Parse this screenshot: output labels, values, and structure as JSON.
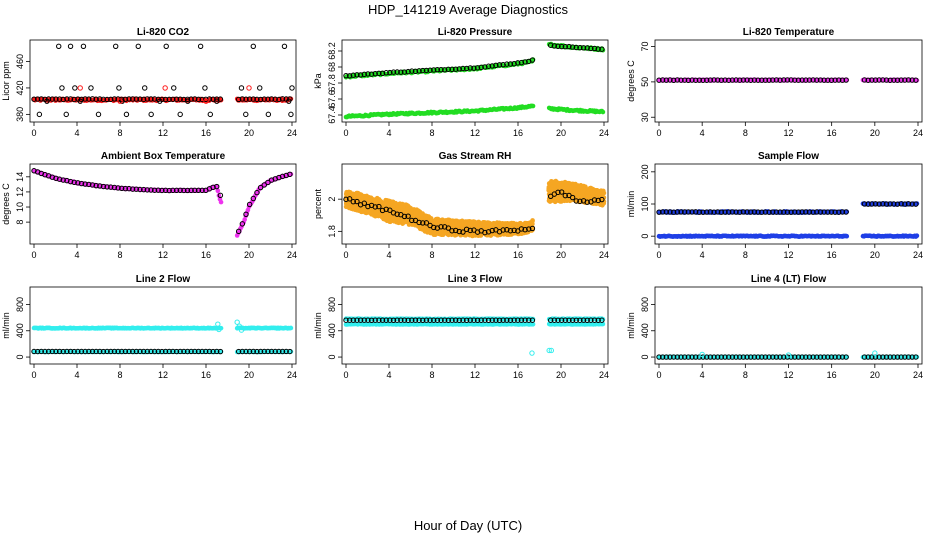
{
  "figure": {
    "title": "HDP_141219  Average Diagnostics",
    "xlabel": "Hour of Day (UTC)"
  },
  "colors": {
    "red": "#ff1a1a",
    "black": "#000000",
    "green": "#22dd22",
    "magenta": "#ee33ee",
    "orange": "#f5a623",
    "blue": "#1f3fe6",
    "cyan": "#33eeee"
  },
  "chart_data": [
    {
      "type": "scatter",
      "title": "Li-820 CO2",
      "ylabel": "Licor ppm",
      "xlim": [
        0,
        24
      ],
      "ylim": [
        373,
        488
      ],
      "xticks": [
        0,
        4,
        8,
        12,
        16,
        20,
        24
      ],
      "yticks": [
        380,
        420,
        460
      ],
      "gaps": [
        [
          17.4,
          18.8
        ]
      ],
      "series": [
        {
          "name": "red",
          "color": "red",
          "kind": "flat",
          "y": 402,
          "jitter": 1.5
        },
        {
          "name": "black-mean",
          "color": "black",
          "kind": "flat",
          "y": 403,
          "jitter": 0.5,
          "hollow": true
        },
        {
          "name": "black-upper",
          "color": "black",
          "kind": "scatter",
          "hollow": true,
          "points": [
            [
              0.5,
              380
            ],
            [
              1.2,
              400
            ],
            [
              2.3,
              483
            ],
            [
              2.6,
              420
            ],
            [
              3.0,
              380
            ],
            [
              3.4,
              483
            ],
            [
              3.8,
              420
            ],
            [
              4.3,
              400
            ],
            [
              4.6,
              483
            ],
            [
              5.3,
              420
            ],
            [
              6.0,
              380
            ],
            [
              7.6,
              483
            ],
            [
              7.9,
              420
            ],
            [
              8.2,
              400
            ],
            [
              8.6,
              380
            ],
            [
              9.7,
              483
            ],
            [
              10.3,
              420
            ],
            [
              10.9,
              380
            ],
            [
              11.7,
              400
            ],
            [
              12.3,
              483
            ],
            [
              13.0,
              420
            ],
            [
              13.6,
              380
            ],
            [
              14.3,
              400
            ],
            [
              15.5,
              483
            ],
            [
              15.9,
              420
            ],
            [
              16.4,
              380
            ],
            [
              17.0,
              400
            ],
            [
              19.3,
              420
            ],
            [
              19.7,
              380
            ],
            [
              20.4,
              483
            ],
            [
              21.0,
              420
            ],
            [
              21.8,
              380
            ],
            [
              23.3,
              483
            ],
            [
              23.9,
              380
            ],
            [
              24.0,
              420
            ],
            [
              23.7,
              400
            ]
          ]
        },
        {
          "name": "red-outliers",
          "color": "red",
          "kind": "scatter",
          "hollow": true,
          "points": [
            [
              4.3,
              420
            ],
            [
              12.2,
              420
            ],
            [
              20.0,
              420
            ],
            [
              8.0,
              400
            ],
            [
              16.0,
              400
            ]
          ]
        }
      ]
    },
    {
      "type": "scatter",
      "title": "Li-820 Pressure",
      "ylabel": "kPa",
      "xlim": [
        0,
        24
      ],
      "ylim": [
        67.35,
        68.3
      ],
      "xticks": [
        0,
        4,
        8,
        12,
        16,
        20,
        24
      ],
      "yticks": [
        67.4,
        67.6,
        67.8,
        68.0,
        68.2
      ],
      "gaps": [
        [
          17.4,
          18.8
        ]
      ],
      "series": [
        {
          "name": "green-lower",
          "color": "green",
          "kind": "line",
          "points": [
            [
              0,
              67.38
            ],
            [
              4,
              67.41
            ],
            [
              8,
              67.43
            ],
            [
              12,
              67.45
            ],
            [
              16,
              67.49
            ],
            [
              17.3,
              67.51
            ],
            [
              18.9,
              67.48
            ],
            [
              21,
              67.46
            ],
            [
              24,
              67.44
            ]
          ],
          "jitter": 0.01
        },
        {
          "name": "green-upper",
          "color": "green",
          "kind": "line",
          "points": [
            [
              0,
              67.88
            ],
            [
              4,
              67.92
            ],
            [
              8,
              67.95
            ],
            [
              12,
              67.98
            ],
            [
              16,
              68.04
            ],
            [
              17.3,
              68.07
            ],
            [
              18.9,
              68.28
            ],
            [
              21,
              68.25
            ],
            [
              24,
              68.22
            ]
          ],
          "jitter": 0.012
        },
        {
          "name": "black-upper",
          "color": "black",
          "kind": "line",
          "hollow": true,
          "points": [
            [
              0,
              67.89
            ],
            [
              4,
              67.93
            ],
            [
              8,
              67.96
            ],
            [
              12,
              67.99
            ],
            [
              16,
              68.05
            ],
            [
              17.3,
              68.08
            ],
            [
              18.9,
              68.27
            ],
            [
              21,
              68.25
            ],
            [
              24,
              68.22
            ]
          ],
          "jitter": 0.004
        }
      ]
    },
    {
      "type": "scatter",
      "title": "Li-820 Temperature",
      "ylabel": "degrees C",
      "xlim": [
        0,
        24
      ],
      "ylim": [
        29,
        72
      ],
      "xticks": [
        0,
        4,
        8,
        12,
        16,
        20,
        24
      ],
      "yticks": [
        30,
        50,
        70
      ],
      "gaps": [
        [
          17.4,
          18.8
        ]
      ],
      "series": [
        {
          "name": "magenta",
          "color": "magenta",
          "kind": "flat",
          "y": 51,
          "jitter": 0.2
        },
        {
          "name": "black",
          "color": "black",
          "kind": "flat",
          "y": 51,
          "jitter": 0.1,
          "hollow": true
        }
      ]
    },
    {
      "type": "scatter",
      "title": "Ambient Box Temperature",
      "ylabel": "degrees C",
      "xlim": [
        0,
        24
      ],
      "ylim": [
        5.5,
        15.3
      ],
      "xticks": [
        0,
        4,
        8,
        12,
        16,
        20,
        24
      ],
      "yticks": [
        8,
        10,
        12,
        14
      ],
      "gaps": [
        [
          17.4,
          18.8
        ]
      ],
      "series": [
        {
          "name": "magenta",
          "color": "magenta",
          "kind": "line",
          "points": [
            [
              0,
              14.8
            ],
            [
              2,
              13.8
            ],
            [
              4,
              13.2
            ],
            [
              6,
              12.8
            ],
            [
              8,
              12.5
            ],
            [
              10,
              12.3
            ],
            [
              12,
              12.2
            ],
            [
              14,
              12.2
            ],
            [
              16,
              12.2
            ],
            [
              16.5,
              12.6
            ],
            [
              17.0,
              12.7
            ],
            [
              17.3,
              11.0
            ],
            [
              18.9,
              6.2
            ],
            [
              19.5,
              8.0
            ],
            [
              20,
              10.0
            ],
            [
              21,
              12.5
            ],
            [
              22,
              13.5
            ],
            [
              23,
              14.0
            ],
            [
              24,
              14.4
            ]
          ],
          "jitter": 0.05
        },
        {
          "name": "black",
          "color": "black",
          "kind": "line",
          "hollow": true,
          "points": [
            [
              0,
              14.8
            ],
            [
              2,
              13.8
            ],
            [
              4,
              13.2
            ],
            [
              6,
              12.8
            ],
            [
              8,
              12.5
            ],
            [
              10,
              12.3
            ],
            [
              12,
              12.2
            ],
            [
              14,
              12.2
            ],
            [
              16,
              12.2
            ],
            [
              16.6,
              12.6
            ],
            [
              17.0,
              12.7
            ],
            [
              18.9,
              6.4
            ],
            [
              19.5,
              8.1
            ],
            [
              20,
              10.2
            ],
            [
              21,
              12.5
            ],
            [
              22,
              13.5
            ],
            [
              23,
              14.0
            ],
            [
              24,
              14.4
            ]
          ],
          "jitter": 0.02
        }
      ]
    },
    {
      "type": "scatter",
      "title": "Gas Stream RH",
      "ylabel": "percent",
      "xlim": [
        0,
        24
      ],
      "ylim": [
        1.74,
        2.2
      ],
      "xticks": [
        0,
        4,
        8,
        12,
        16,
        20,
        24
      ],
      "yticks": [
        1.8,
        2.0
      ],
      "gaps": [
        [
          17.4,
          18.8
        ]
      ],
      "series": [
        {
          "name": "orange-band",
          "color": "orange",
          "kind": "band",
          "density": 7,
          "lower": [
            [
              0,
              1.95
            ],
            [
              2,
              1.91
            ],
            [
              4,
              1.86
            ],
            [
              6,
              1.84
            ],
            [
              8,
              1.78
            ],
            [
              12,
              1.77
            ],
            [
              16,
              1.78
            ],
            [
              17.3,
              1.8
            ],
            [
              18.9,
              1.98
            ],
            [
              21,
              1.99
            ],
            [
              24,
              1.96
            ]
          ],
          "upper": [
            [
              0,
              2.06
            ],
            [
              2,
              2.02
            ],
            [
              4,
              1.99
            ],
            [
              6,
              1.96
            ],
            [
              8,
              1.88
            ],
            [
              12,
              1.86
            ],
            [
              16,
              1.85
            ],
            [
              17.3,
              1.86
            ],
            [
              18.9,
              2.12
            ],
            [
              21,
              2.1
            ],
            [
              24,
              2.05
            ]
          ]
        },
        {
          "name": "black",
          "color": "black",
          "kind": "line",
          "hollow": true,
          "points": [
            [
              0,
              2.0
            ],
            [
              2,
              1.96
            ],
            [
              4,
              1.93
            ],
            [
              6,
              1.88
            ],
            [
              8,
              1.83
            ],
            [
              10,
              1.81
            ],
            [
              12,
              1.8
            ],
            [
              14,
              1.8
            ],
            [
              16,
              1.81
            ],
            [
              17.3,
              1.82
            ],
            [
              19,
              2.02
            ],
            [
              20,
              2.04
            ],
            [
              22,
              1.98
            ],
            [
              24,
              2.0
            ]
          ],
          "jitter": 0.01
        }
      ]
    },
    {
      "type": "scatter",
      "title": "Sample Flow",
      "ylabel": "ml/min",
      "xlim": [
        0,
        24
      ],
      "ylim": [
        -15,
        215
      ],
      "xticks": [
        0,
        4,
        8,
        12,
        16,
        20,
        24
      ],
      "yticks": [
        0,
        100,
        200
      ],
      "gaps": [
        [
          17.4,
          18.8
        ]
      ],
      "series": [
        {
          "name": "blue-high",
          "color": "blue",
          "kind": "flat",
          "y": 75,
          "jitter": 2,
          "post_gap_y": 100
        },
        {
          "name": "blue-low",
          "color": "blue",
          "kind": "flat",
          "y": 0,
          "jitter": 1.5
        },
        {
          "name": "black",
          "color": "black",
          "kind": "flat",
          "y": 75,
          "jitter": 0.5,
          "hollow": true,
          "post_gap_y": 100
        }
      ]
    },
    {
      "type": "scatter",
      "title": "Line 2 Flow",
      "ylabel": "ml/min",
      "xlim": [
        0,
        24
      ],
      "ylim": [
        -60,
        1020
      ],
      "xticks": [
        0,
        4,
        8,
        12,
        16,
        20,
        24
      ],
      "yticks": [
        0,
        400,
        800
      ],
      "gaps": [
        [
          17.4,
          18.8
        ]
      ],
      "series": [
        {
          "name": "cyan-high",
          "color": "cyan",
          "kind": "flat",
          "y": 440,
          "jitter": 5
        },
        {
          "name": "cyan-low",
          "color": "cyan",
          "kind": "flat",
          "y": 80,
          "jitter": 3
        },
        {
          "name": "black",
          "color": "black",
          "kind": "flat",
          "y": 85,
          "jitter": 1,
          "hollow": true
        },
        {
          "name": "cyan-outliers",
          "color": "cyan",
          "kind": "scatter",
          "hollow": true,
          "points": [
            [
              17.1,
              500
            ],
            [
              17.2,
              420
            ],
            [
              18.9,
              530
            ],
            [
              19.1,
              470
            ],
            [
              19.3,
              410
            ]
          ]
        }
      ]
    },
    {
      "type": "scatter",
      "title": "Line 3 Flow",
      "ylabel": "ml/min",
      "xlim": [
        0,
        24
      ],
      "ylim": [
        -60,
        1020
      ],
      "xticks": [
        0,
        4,
        8,
        12,
        16,
        20,
        24
      ],
      "yticks": [
        0,
        400,
        800
      ],
      "gaps": [
        [
          17.4,
          18.8
        ]
      ],
      "series": [
        {
          "name": "cyan-high",
          "color": "cyan",
          "kind": "flat",
          "y": 580,
          "jitter": 5
        },
        {
          "name": "cyan-low",
          "color": "cyan",
          "kind": "flat",
          "y": 500,
          "jitter": 5
        },
        {
          "name": "black",
          "color": "black",
          "kind": "flat",
          "y": 560,
          "jitter": 1,
          "hollow": true
        },
        {
          "name": "cyan-outliers",
          "color": "cyan",
          "kind": "scatter",
          "hollow": true,
          "points": [
            [
              17.3,
              60
            ],
            [
              18.9,
              100
            ],
            [
              19.1,
              100
            ]
          ]
        }
      ]
    },
    {
      "type": "scatter",
      "title": "Line 4 (LT) Flow",
      "ylabel": "ml/min",
      "xlim": [
        0,
        24
      ],
      "ylim": [
        -60,
        1020
      ],
      "xticks": [
        0,
        4,
        8,
        12,
        16,
        20,
        24
      ],
      "yticks": [
        0,
        400,
        800
      ],
      "gaps": [
        [
          17.4,
          18.8
        ]
      ],
      "series": [
        {
          "name": "cyan",
          "color": "cyan",
          "kind": "flat",
          "y": 0,
          "jitter": 2
        },
        {
          "name": "black",
          "color": "black",
          "kind": "flat",
          "y": 0,
          "jitter": 0.5,
          "hollow": true
        },
        {
          "name": "cyan-outliers",
          "color": "cyan",
          "kind": "scatter",
          "hollow": true,
          "points": [
            [
              4,
              40
            ],
            [
              12,
              30
            ],
            [
              20,
              60
            ]
          ]
        }
      ]
    }
  ]
}
